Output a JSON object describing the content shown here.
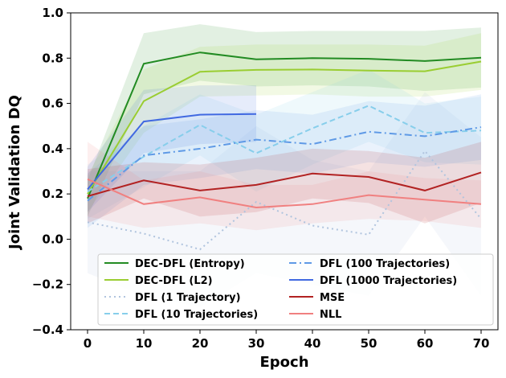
{
  "chart_data": {
    "type": "line",
    "title": "",
    "xlabel": "Epoch",
    "ylabel": "Joint Validation DQ",
    "xlim": [
      -3,
      73
    ],
    "ylim": [
      -0.4,
      1.0
    ],
    "xticks": [
      0,
      10,
      20,
      30,
      40,
      50,
      60,
      70
    ],
    "yticks": [
      -0.4,
      -0.2,
      0.0,
      0.2,
      0.4,
      0.6,
      0.8,
      1.0
    ],
    "ytick_labels": [
      "−0.4",
      "−0.2",
      "0.0",
      "0.2",
      "0.4",
      "0.6",
      "0.8",
      "1.0"
    ],
    "grid": false,
    "legend_position": "lower-center",
    "series": [
      {
        "name": "DEC-DFL (Entropy)",
        "color": "#228B22",
        "dash": "solid",
        "x": [
          0,
          10,
          20,
          30,
          40,
          50,
          60,
          70
        ],
        "y": [
          0.18,
          0.775,
          0.825,
          0.795,
          0.8,
          0.797,
          0.787,
          0.802
        ],
        "upper": [
          0.26,
          0.91,
          0.95,
          0.915,
          0.92,
          0.92,
          0.92,
          0.935
        ],
        "lower": [
          0.1,
          0.64,
          0.7,
          0.675,
          0.68,
          0.675,
          0.655,
          0.67
        ]
      },
      {
        "name": "DEC-DFL (L2)",
        "color": "#9ACD32",
        "dash": "solid",
        "x": [
          0,
          10,
          20,
          30,
          40,
          50,
          60,
          70
        ],
        "y": [
          0.2,
          0.61,
          0.74,
          0.748,
          0.75,
          0.745,
          0.742,
          0.785
        ],
        "upper": [
          0.28,
          0.75,
          0.85,
          0.86,
          0.86,
          0.86,
          0.855,
          0.91
        ],
        "lower": [
          0.12,
          0.47,
          0.63,
          0.635,
          0.64,
          0.63,
          0.63,
          0.66
        ]
      },
      {
        "name": "DFL (1 Trajectory)",
        "color": "#B0C4DE",
        "dash": "dotted",
        "x": [
          0,
          10,
          20,
          30,
          40,
          50,
          60,
          70
        ],
        "y": [
          0.075,
          0.025,
          -0.045,
          0.165,
          0.06,
          0.02,
          0.39,
          0.09
        ],
        "upper": [
          0.3,
          0.3,
          0.3,
          0.5,
          0.35,
          0.3,
          0.65,
          0.45
        ],
        "lower": [
          -0.15,
          -0.25,
          -0.3,
          -0.15,
          -0.2,
          -0.25,
          0.1,
          -0.25
        ]
      },
      {
        "name": "DFL (10 Trajectories)",
        "color": "#87CEEB",
        "dash": "dashed",
        "x": [
          0,
          10,
          20,
          30,
          40,
          50,
          60,
          70
        ],
        "y": [
          0.21,
          0.365,
          0.505,
          0.38,
          0.49,
          0.59,
          0.47,
          0.48
        ],
        "upper": [
          0.33,
          0.5,
          0.64,
          0.55,
          0.65,
          0.75,
          0.6,
          0.63
        ],
        "lower": [
          0.09,
          0.23,
          0.37,
          0.21,
          0.33,
          0.43,
          0.34,
          0.33
        ]
      },
      {
        "name": "DFL (100 Trajectories)",
        "color": "#5F9AE6",
        "dash": "dashdot",
        "x": [
          0,
          10,
          20,
          30,
          40,
          50,
          60,
          70
        ],
        "y": [
          0.17,
          0.37,
          0.4,
          0.44,
          0.42,
          0.475,
          0.455,
          0.495
        ],
        "upper": [
          0.29,
          0.5,
          0.53,
          0.57,
          0.55,
          0.61,
          0.59,
          0.64
        ],
        "lower": [
          0.05,
          0.24,
          0.27,
          0.31,
          0.29,
          0.34,
          0.32,
          0.35
        ]
      },
      {
        "name": "DFL (1000 Trajectories)",
        "color": "#4169E1",
        "dash": "solid",
        "x": [
          0,
          10,
          20,
          30
        ],
        "y": [
          0.22,
          0.52,
          0.55,
          0.553
        ],
        "upper": [
          0.32,
          0.66,
          0.68,
          0.68
        ],
        "lower": [
          0.12,
          0.38,
          0.42,
          0.43
        ]
      },
      {
        "name": "MSE",
        "color": "#B22222",
        "dash": "solid",
        "x": [
          0,
          10,
          20,
          30,
          40,
          50,
          60,
          70
        ],
        "y": [
          0.19,
          0.26,
          0.215,
          0.24,
          0.29,
          0.275,
          0.215,
          0.295
        ],
        "upper": [
          0.31,
          0.34,
          0.33,
          0.36,
          0.4,
          0.39,
          0.36,
          0.43
        ],
        "lower": [
          0.07,
          0.18,
          0.1,
          0.12,
          0.18,
          0.16,
          0.07,
          0.16
        ]
      },
      {
        "name": "NLL",
        "color": "#F08080",
        "dash": "solid",
        "x": [
          0,
          10,
          20,
          30,
          40,
          50,
          60,
          70
        ],
        "y": [
          0.265,
          0.155,
          0.185,
          0.14,
          0.155,
          0.195,
          0.175,
          0.155
        ],
        "upper": [
          0.43,
          0.26,
          0.3,
          0.24,
          0.24,
          0.3,
          0.27,
          0.26
        ],
        "lower": [
          0.1,
          0.05,
          0.07,
          0.04,
          0.07,
          0.09,
          0.08,
          0.05
        ]
      }
    ]
  }
}
